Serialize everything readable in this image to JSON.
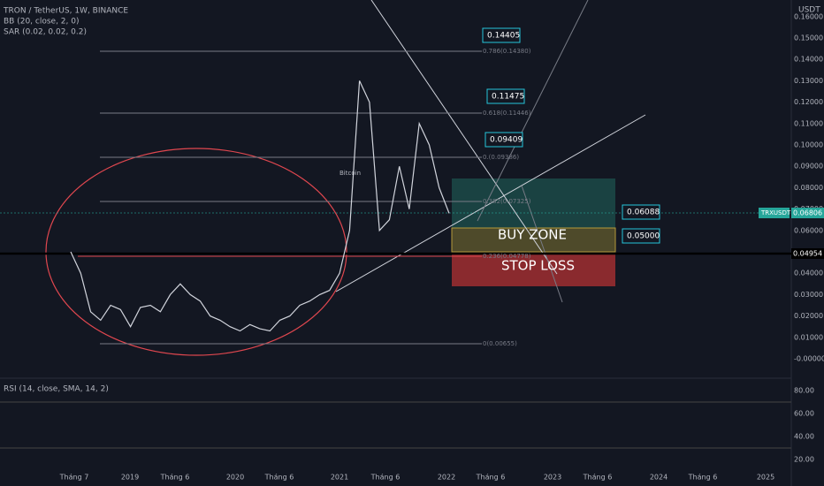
{
  "header": {
    "symbol": "TRON / TetherUS, 1W, BINANCE",
    "indicators": [
      "BB (20, close, 2, 0)",
      "SAR (0.02, 0.02, 0.2)"
    ]
  },
  "price_axis": {
    "unit": "USDT",
    "ticks": [
      "0.16000",
      "0.15000",
      "0.14000",
      "0.13000",
      "0.12000",
      "0.11000",
      "0.10000",
      "0.09000",
      "0.08000",
      "0.07000",
      "0.06000",
      "0.05000",
      "0.04000",
      "0.03000",
      "0.02000",
      "0.01000",
      "-0.00000"
    ],
    "symbol_label": "TRXUSDT",
    "current": "0.06806",
    "line_label": "0.04954"
  },
  "time_axis": [
    "Tháng 7",
    "2019",
    "Tháng 6",
    "2020",
    "Tháng 6",
    "2021",
    "Tháng 6",
    "2022",
    "Tháng 6",
    "2023",
    "Tháng 6",
    "2024",
    "Tháng 6",
    "2025"
  ],
  "fib_levels": [
    "0.786(0.14380)",
    "0.618(0.11446)",
    "0.(0.09386)",
    "0.382(0.07325)",
    "0.236(0.04778)",
    "0(0.00655)"
  ],
  "callouts": [
    "0.14405",
    "0.11475",
    "0.09409",
    "0.06088",
    "0.05000"
  ],
  "zones": {
    "buy": "BUY ZONE",
    "stop": "STOP LOSS"
  },
  "watermark": "Bitcoin",
  "price_series": [
    0.05,
    0.04,
    0.022,
    0.018,
    0.025,
    0.023,
    0.015,
    0.024,
    0.025,
    0.022,
    0.03,
    0.035,
    0.03,
    0.027,
    0.02,
    0.018,
    0.015,
    0.013,
    0.016,
    0.014,
    0.013,
    0.018,
    0.02,
    0.025,
    0.027,
    0.03,
    0.032,
    0.04,
    0.06,
    0.13,
    0.12,
    0.06,
    0.065,
    0.09,
    0.07,
    0.11,
    0.1,
    0.08,
    0.068
  ],
  "rsi": {
    "label": "RSI (14, close, SMA, 14, 2)",
    "ticks": [
      "80.00",
      "60.00",
      "40.00",
      "20.00"
    ]
  }
}
